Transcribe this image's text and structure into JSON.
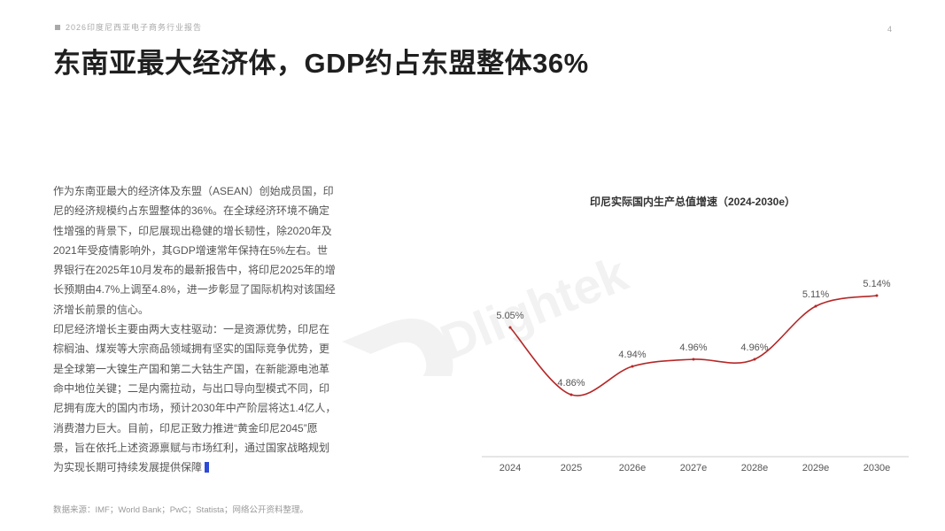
{
  "header": {
    "report_title": "2026印度尼西亚电子商务行业报告",
    "page_number": "4"
  },
  "page_title": "东南亚最大经济体，GDP约占东盟整体36%",
  "body": {
    "paragraphs": [
      "作为东南亚最大的经济体及东盟（ASEAN）创始成员国，印尼的经济规模约占东盟整体的36%。在全球经济环境不确定性增强的背景下，印尼展现出稳健的增长韧性，除2020年及2021年受疫情影响外，其GDP增速常年保持在5%左右。世界银行在2025年10月发布的最新报告中，将印尼2025年的增长预期由4.7%上调至4.8%，进一步彰显了国际机构对该国经济增长前景的信心。",
      "印尼经济增长主要由两大支柱驱动：一是资源优势，印尼在棕榈油、煤炭等大宗商品领域拥有坚实的国际竞争优势，更是全球第一大镍生产国和第二大钴生产国，在新能源电池革命中地位关键；二是内需拉动，与出口导向型模式不同，印尼拥有庞大的国内市场，预计2030年中产阶层将达1.4亿人，消费潜力巨大。目前，印尼正致力推进“黄金印尼2045”愿景，旨在依托上述资源禀赋与市场红利，通过国家战略规划为实现长期可持续发展提供保障"
    ]
  },
  "source_note": "数据来源：IMF；World Bank；PwC；Statista；网络公开资料整理。",
  "watermark": {
    "text": "Dlightek"
  },
  "colors": {
    "line": "#b52828",
    "accent": "#2d4bd6",
    "axis": "#cccccc"
  },
  "chart_data": {
    "type": "line",
    "title": "印尼实际国内生产总值增速（2024-2030e）",
    "categories": [
      "2024",
      "2025",
      "2026e",
      "2027e",
      "2028e",
      "2029e",
      "2030e"
    ],
    "values": [
      5.05,
      4.86,
      4.94,
      4.96,
      4.96,
      5.11,
      5.14
    ],
    "data_labels": [
      "5.05%",
      "4.86%",
      "4.94%",
      "4.96%",
      "4.96%",
      "5.11%",
      "5.14%"
    ],
    "ylim": [
      4.7,
      5.35
    ],
    "grid": false,
    "smooth": true
  }
}
